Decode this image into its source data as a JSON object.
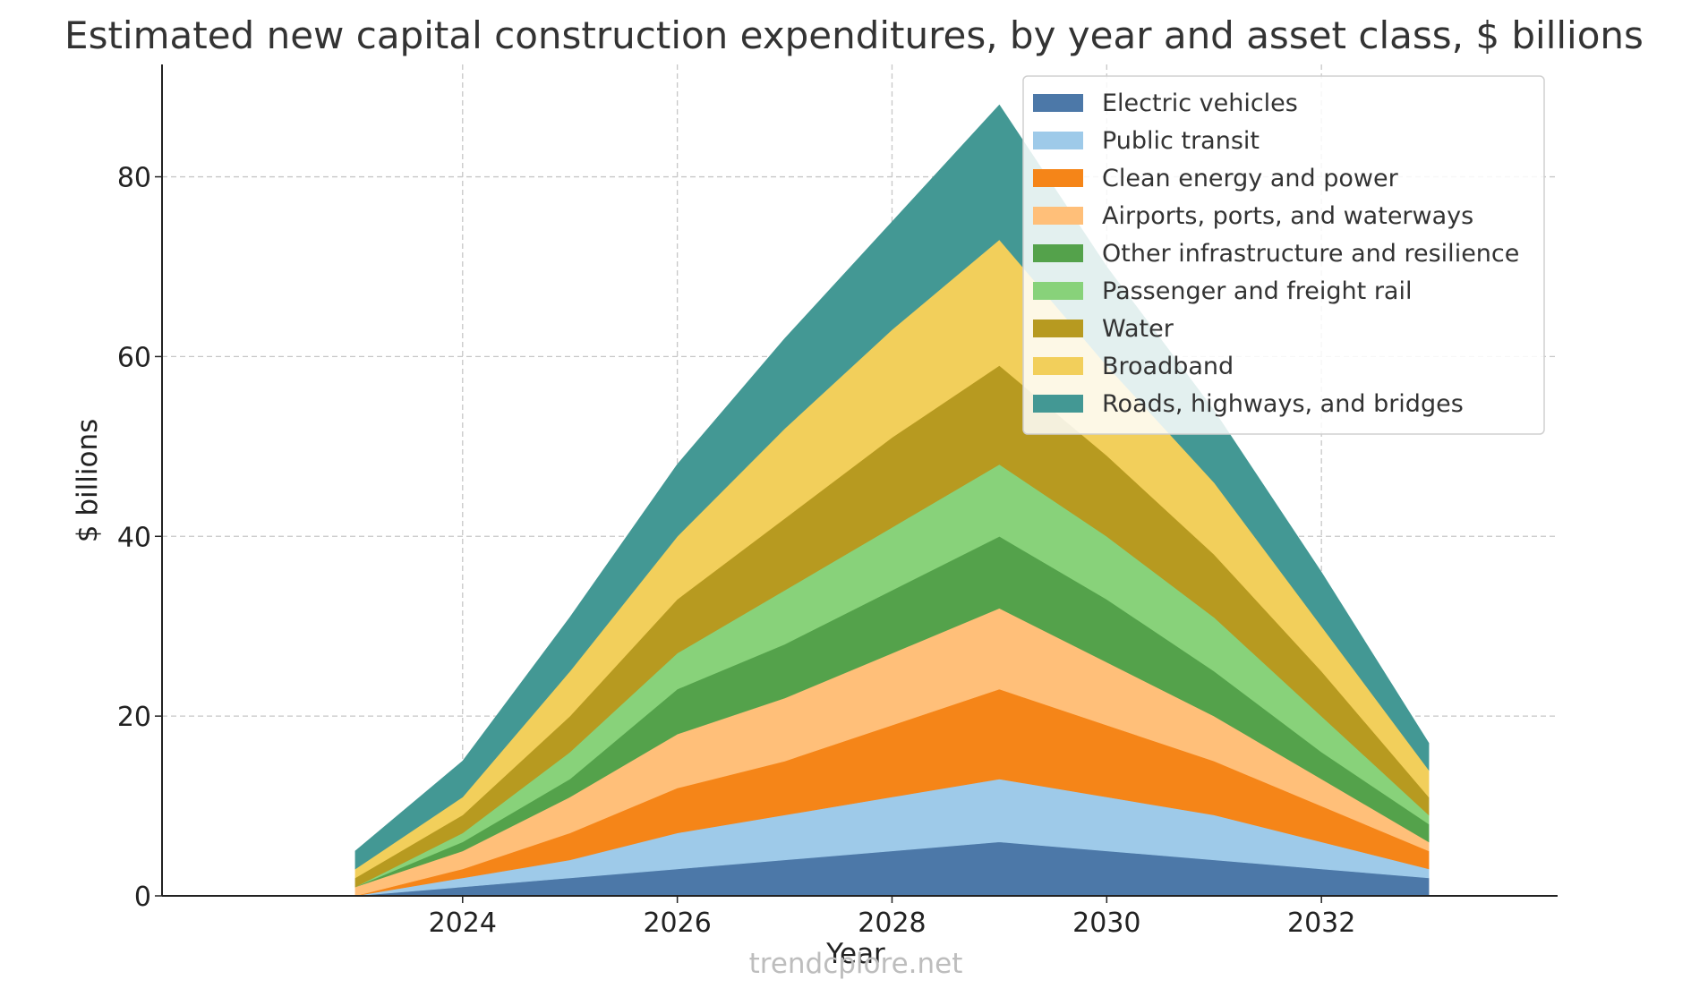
{
  "chart_data": {
    "type": "area",
    "stacked": true,
    "title": "Estimated new capital construction expenditures, by year and asset class, $ billions",
    "xlabel": "Year",
    "ylabel": "$ billions",
    "x": [
      2023,
      2024,
      2025,
      2026,
      2027,
      2028,
      2029,
      2030,
      2031,
      2032,
      2033
    ],
    "xlim": [
      2021.2,
      2034.2
    ],
    "ylim": [
      0,
      92.5
    ],
    "xticks": [
      2024,
      2026,
      2028,
      2030,
      2032
    ],
    "yticks": [
      0,
      20,
      40,
      60,
      80
    ],
    "grid": true,
    "legend_position": "top-right",
    "series": [
      {
        "name": "Electric vehicles",
        "color": "#4c78a8",
        "values": [
          0,
          1,
          2,
          3,
          4,
          5,
          6,
          5,
          4,
          3,
          2
        ]
      },
      {
        "name": "Public transit",
        "color": "#9ecae9",
        "values": [
          0,
          1,
          2,
          4,
          5,
          6,
          7,
          6,
          5,
          3,
          1
        ]
      },
      {
        "name": "Clean energy and power",
        "color": "#f58518",
        "values": [
          0,
          1,
          3,
          5,
          6,
          8,
          10,
          8,
          6,
          4,
          2
        ]
      },
      {
        "name": "Airports, ports, and waterways",
        "color": "#ffbf79",
        "values": [
          1,
          2,
          4,
          6,
          7,
          8,
          9,
          7,
          5,
          3,
          1
        ]
      },
      {
        "name": "Other infrastructure and resilience",
        "color": "#54a24b",
        "values": [
          0,
          1,
          2,
          5,
          6,
          7,
          8,
          7,
          5,
          3,
          2
        ]
      },
      {
        "name": "Passenger and freight rail",
        "color": "#88d27a",
        "values": [
          0,
          1,
          3,
          4,
          6,
          7,
          8,
          7,
          6,
          4,
          1
        ]
      },
      {
        "name": "Water",
        "color": "#b79a20",
        "values": [
          1,
          2,
          4,
          6,
          8,
          10,
          11,
          9,
          7,
          5,
          2
        ]
      },
      {
        "name": "Broadband",
        "color": "#f2cf5b",
        "values": [
          1,
          2,
          5,
          7,
          10,
          12,
          14,
          10,
          8,
          5,
          3
        ]
      },
      {
        "name": "Roads, highways, and bridges",
        "color": "#439894",
        "values": [
          2,
          4,
          6,
          8,
          10,
          12,
          15,
          11,
          8,
          6,
          3
        ]
      }
    ]
  },
  "watermark": "trendcplore.net"
}
